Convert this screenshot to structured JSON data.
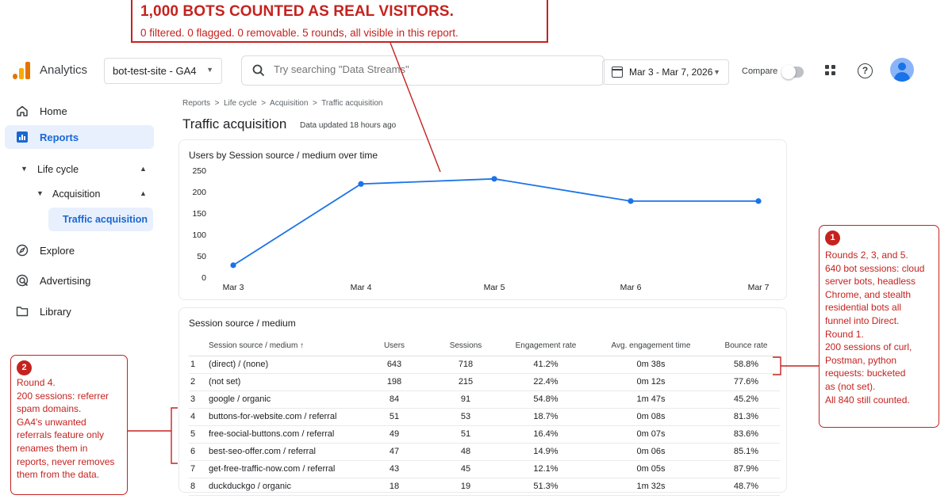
{
  "headline": {
    "title": "1,000 BOTS COUNTED AS REAL VISITORS.",
    "subtitle": "0 filtered. 0 flagged. 0 removable. 5 rounds, all visible in this report."
  },
  "topbar": {
    "app_name": "Analytics",
    "property": "bot-test-site - GA4",
    "search_placeholder": "Try searching \"Data Streams\"",
    "date_range": "Mar 3 - Mar 7, 2026",
    "compare_label": "Compare"
  },
  "sidebar": {
    "home": "Home",
    "reports": "Reports",
    "life_cycle": "Life cycle",
    "acquisition": "Acquisition",
    "traffic_acquisition": "Traffic acquisition",
    "explore": "Explore",
    "advertising": "Advertising",
    "library": "Library"
  },
  "main": {
    "breadcrumb": "Reports  >  Life cycle  >  Acquisition  >  Traffic acquisition",
    "title": "Traffic acquisition",
    "updated": "Data updated 18 hours ago"
  },
  "chart_data": {
    "type": "line",
    "title": "Users by Session source / medium over time",
    "categories": [
      "Mar 3",
      "Mar 4",
      "Mar 5",
      "Mar 6",
      "Mar 7"
    ],
    "series": [
      {
        "values": [
          28,
          218,
          230,
          178,
          178
        ]
      }
    ],
    "yticks": [
      0,
      50,
      100,
      150,
      200,
      250
    ],
    "ylim": [
      0,
      250
    ],
    "grid": false,
    "color": "#1a73e8"
  },
  "table": {
    "title": "Session source / medium",
    "columns": [
      "Session source / medium  ↑",
      "Users",
      "Sessions",
      "Engagement rate",
      "Avg. engagement time",
      "Bounce rate"
    ],
    "rows": [
      [
        "1",
        "(direct) / (none)",
        "643",
        "718",
        "41.2%",
        "0m 38s",
        "58.8%"
      ],
      [
        "2",
        "(not set)",
        "198",
        "215",
        "22.4%",
        "0m 12s",
        "77.6%"
      ],
      [
        "3",
        "google / organic",
        "84",
        "91",
        "54.8%",
        "1m 47s",
        "45.2%"
      ],
      [
        "4",
        "buttons-for-website.com / referral",
        "51",
        "53",
        "18.7%",
        "0m 08s",
        "81.3%"
      ],
      [
        "5",
        "free-social-buttons.com / referral",
        "49",
        "51",
        "16.4%",
        "0m 07s",
        "83.6%"
      ],
      [
        "6",
        "best-seo-offer.com / referral",
        "47",
        "48",
        "14.9%",
        "0m 06s",
        "85.1%"
      ],
      [
        "7",
        "get-free-traffic-now.com / referral",
        "43",
        "45",
        "12.1%",
        "0m 05s",
        "87.9%"
      ],
      [
        "8",
        "duckduckgo / organic",
        "18",
        "19",
        "51.3%",
        "1m 32s",
        "48.7%"
      ]
    ]
  },
  "annotations": {
    "one": {
      "badge": "1",
      "lines": [
        "Rounds 2, 3, and 5.",
        "640 bot sessions: cloud",
        "server bots, headless",
        "Chrome, and stealth",
        "residential bots all",
        "funnel into Direct.",
        "Round 1.",
        "200 sessions of curl,",
        "Postman, python",
        "requests: bucketed",
        "as (not set).",
        "All 840 still counted."
      ]
    },
    "two": {
      "badge": "2",
      "lines": [
        "Round 4.",
        "200 sessions: referrer",
        "spam domains.",
        "GA4's unwanted",
        "referrals feature only",
        "renames them in",
        "reports, never removes",
        "them from the data."
      ]
    }
  }
}
